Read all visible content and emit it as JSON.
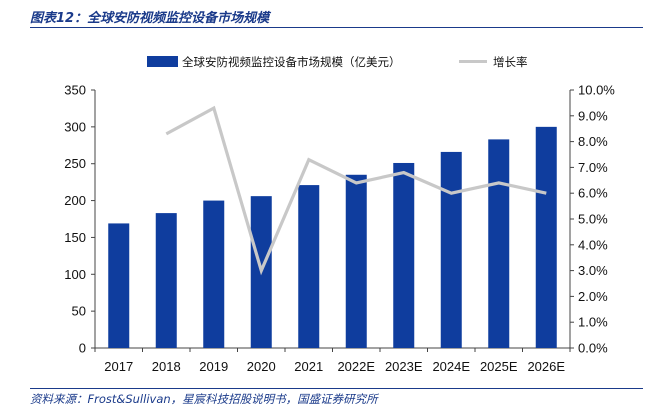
{
  "figure": {
    "title": "图表12：全球安防视频监控设备市场规模",
    "source": "资料来源：Frost&Sullivan，星宸科技招股说明书，国盛证券研究所"
  },
  "colors": {
    "bar": "#0f3d9e",
    "line": "#c8c8c8",
    "accent": "#1a3a8a"
  },
  "chart_data": {
    "type": "bar",
    "categories": [
      "2017",
      "2018",
      "2019",
      "2020",
      "2021",
      "2022E",
      "2023E",
      "2024E",
      "2025E",
      "2026E"
    ],
    "series": [
      {
        "name": "全球安防视频监控设备市场规模（亿美元）",
        "type": "bar",
        "axis": "left",
        "values": [
          169,
          183,
          200,
          206,
          221,
          235,
          251,
          266,
          283,
          300
        ]
      },
      {
        "name": "增长率",
        "type": "line",
        "axis": "right",
        "values": [
          null,
          8.3,
          9.3,
          3.0,
          7.3,
          6.4,
          6.8,
          6.0,
          6.4,
          6.0
        ]
      }
    ],
    "y_left": {
      "min": 0,
      "max": 350,
      "ticks": [
        "0",
        "50",
        "100",
        "150",
        "200",
        "250",
        "300",
        "350"
      ]
    },
    "y_right": {
      "min": 0,
      "max": 10,
      "ticks": [
        "0.0%",
        "1.0%",
        "2.0%",
        "3.0%",
        "4.0%",
        "5.0%",
        "6.0%",
        "7.0%",
        "8.0%",
        "9.0%",
        "10.0%"
      ]
    },
    "legend": "top-center",
    "grid": false
  }
}
